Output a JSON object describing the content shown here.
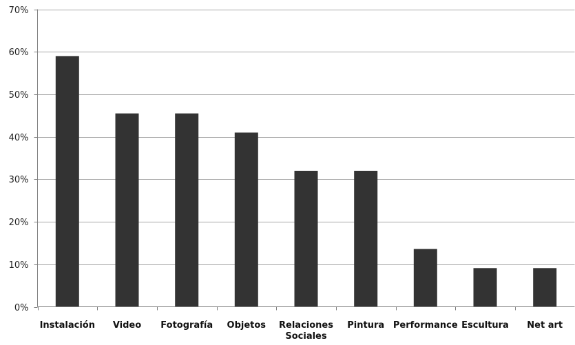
{
  "chart_data": {
    "type": "bar",
    "title": "",
    "xlabel": "",
    "ylabel": "",
    "categories": [
      [
        "Instalación"
      ],
      [
        "Video"
      ],
      [
        "Fotografía"
      ],
      [
        "Objetos"
      ],
      [
        "Relaciones",
        "Sociales"
      ],
      [
        "Pintura"
      ],
      [
        "Performance"
      ],
      [
        "Escultura"
      ],
      [
        "Net art"
      ]
    ],
    "values": [
      59,
      45.5,
      45.5,
      41,
      32,
      32,
      13.6,
      9.1,
      9.1
    ],
    "ylim": [
      0,
      70
    ],
    "yticks": [
      0,
      10,
      20,
      30,
      40,
      50,
      60,
      70
    ],
    "ytick_labels": [
      "0%",
      "10%",
      "20%",
      "30%",
      "40%",
      "50%",
      "60%",
      "70%"
    ],
    "grid": true,
    "legend": "none",
    "colors": {
      "bar": "#333333",
      "grid": "#a6a6a6",
      "axis": "#7f7f7f"
    }
  }
}
